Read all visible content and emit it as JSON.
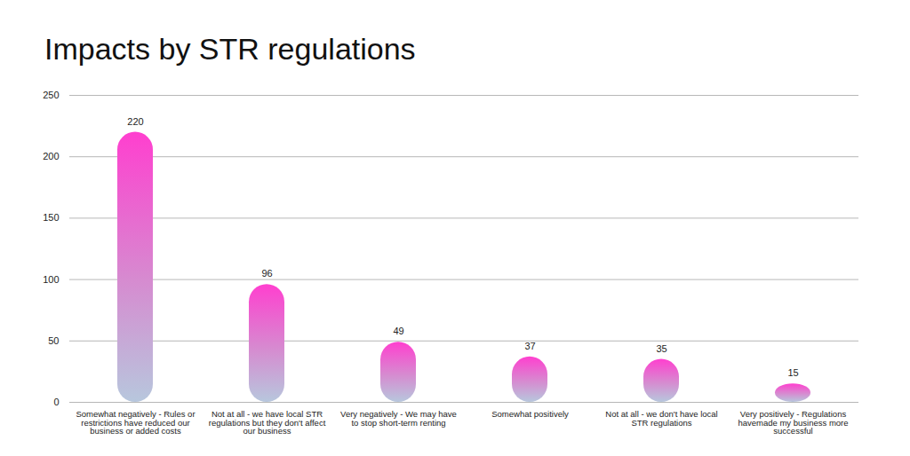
{
  "chart_data": {
    "type": "bar",
    "title": "Impacts by STR regulations",
    "categories": [
      "Somewhat negatively - Rules or restrictions have reduced our business or added costs",
      "Not at all - we have local STR regulations but they don't affect our business",
      "Very negatively - We may have to stop short-term renting",
      "Somewhat positively",
      "Not at all - we don't have local STR regulations",
      "Very positively - Regulations havemade my business more successful"
    ],
    "values": [
      220,
      96,
      49,
      37,
      35,
      15
    ],
    "color": "#ff3fcf",
    "ylim": [
      0,
      250
    ],
    "yticks": [
      0,
      50,
      100,
      150,
      200,
      250
    ],
    "grid": true,
    "data_labels": true
  }
}
